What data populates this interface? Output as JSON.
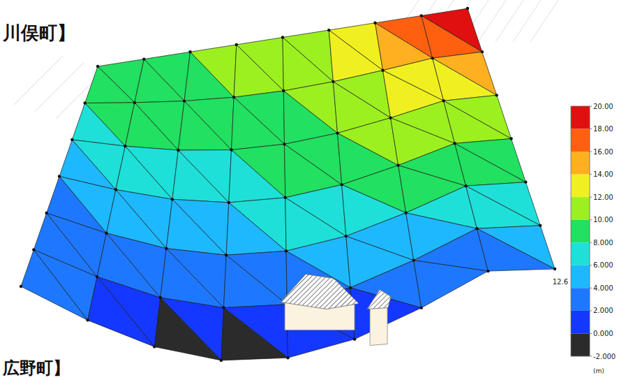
{
  "chart_data": {
    "type": "surface",
    "title": "川俣町】",
    "subtitle": "広野町】",
    "annotation": "12.6",
    "colorbar_unit": "(m)",
    "z": [
      [
        9,
        10,
        10,
        10,
        11,
        12,
        15,
        18,
        20
      ],
      [
        8,
        9,
        9,
        10,
        10,
        11,
        13,
        15,
        16
      ],
      [
        6,
        7,
        8,
        8,
        9,
        10,
        11,
        12,
        12
      ],
      [
        4,
        5,
        6,
        6,
        7,
        8,
        9,
        10,
        10
      ],
      [
        3,
        3,
        4,
        4,
        5,
        6,
        7,
        8,
        7
      ],
      [
        3,
        2,
        1,
        1,
        2,
        3,
        4,
        5,
        5
      ],
      [
        4,
        2,
        -1,
        -1,
        -1,
        -1,
        0,
        2,
        4
      ]
    ],
    "colorbar_lim": [
      -2,
      20
    ],
    "colorbar_ticks": [
      {
        "value": 20,
        "label": "20.00"
      },
      {
        "value": 18,
        "label": "18.00"
      },
      {
        "value": 16,
        "label": "16.00"
      },
      {
        "value": 14,
        "label": "14.00"
      },
      {
        "value": 12,
        "label": "12.00"
      },
      {
        "value": 10,
        "label": "10.00"
      },
      {
        "value": 8,
        "label": "8.000"
      },
      {
        "value": 6,
        "label": "6.000"
      },
      {
        "value": 4,
        "label": "4.000"
      },
      {
        "value": 2,
        "label": "2.000"
      },
      {
        "value": 0,
        "label": "0.000"
      },
      {
        "value": -2,
        "label": "-2.000"
      }
    ]
  }
}
